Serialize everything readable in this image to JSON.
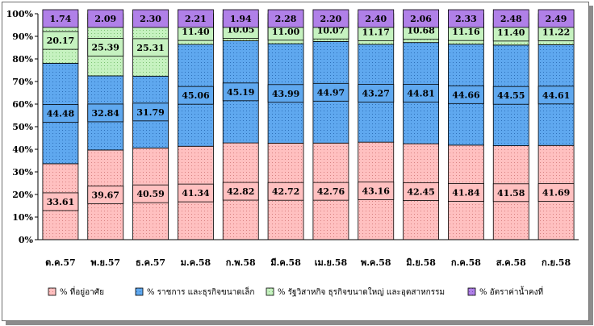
{
  "chart_data": {
    "type": "bar",
    "stacked": true,
    "percent": true,
    "categories": [
      "ต.ค.57",
      "พ.ย.57",
      "ธ.ค.57",
      "ม.ค.58",
      "ก.พ.58",
      "มี.ค.58",
      "เม.ย.58",
      "พ.ค.58",
      "มิ.ย.58",
      "ก.ค.58",
      "ส.ค.58",
      "ก.ย.58"
    ],
    "series": [
      {
        "name": "% ที่อยู่อาศัย",
        "color": "#ffc0c0",
        "values": [
          33.61,
          39.67,
          40.59,
          41.34,
          42.82,
          42.72,
          42.76,
          43.16,
          42.45,
          41.84,
          41.58,
          41.69
        ]
      },
      {
        "name": "% ราชการ และธุรกิจขนาดเล็ก",
        "color": "#5fa8ef",
        "values": [
          44.48,
          32.84,
          31.79,
          45.06,
          45.19,
          43.99,
          44.97,
          43.27,
          44.81,
          44.66,
          44.55,
          44.61
        ]
      },
      {
        "name": "% รัฐวิสาหกิจ ธุรกิจขนาดใหญ่ และอุตสาหกรรม",
        "color": "#c6f2c0",
        "values": [
          20.17,
          25.39,
          25.31,
          11.4,
          10.05,
          11.0,
          10.07,
          11.17,
          10.68,
          11.16,
          11.4,
          11.22
        ]
      },
      {
        "name": "% อัตราค่าน้ำคงที่",
        "color": "#b080e8",
        "values": [
          1.74,
          2.09,
          2.3,
          2.21,
          1.94,
          2.28,
          2.2,
          2.4,
          2.06,
          2.33,
          2.48,
          2.49
        ]
      }
    ],
    "yticks": [
      "0%",
      "10%",
      "20%",
      "30%",
      "40%",
      "50%",
      "60%",
      "70%",
      "80%",
      "90%",
      "100%"
    ],
    "ylim": [
      0,
      100
    ],
    "grid": false,
    "legend": "bottom"
  }
}
